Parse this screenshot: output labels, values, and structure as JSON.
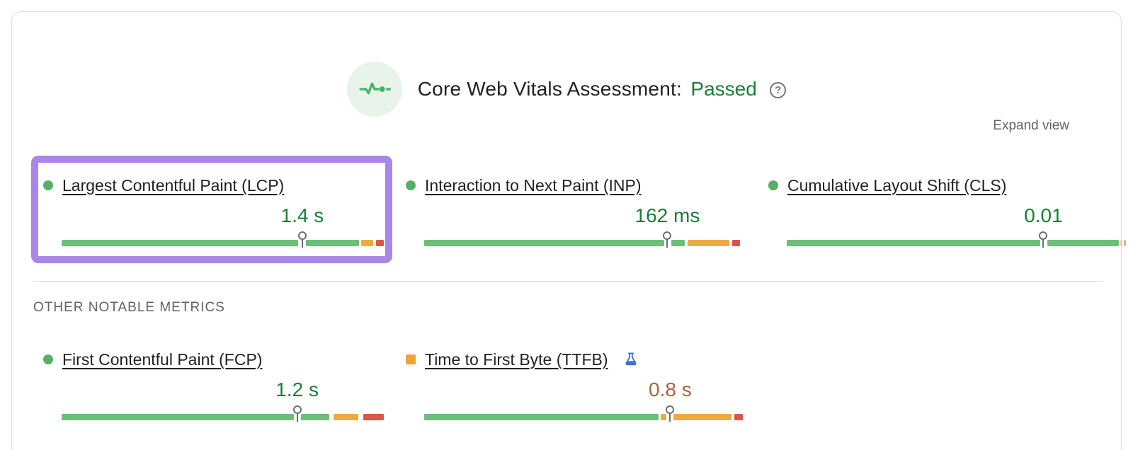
{
  "header": {
    "icon": "pulse-icon",
    "title": "Core Web Vitals Assessment:",
    "status": "Passed",
    "help_glyph": "?"
  },
  "expand_view_label": "Expand view",
  "other_metrics_title": "OTHER NOTABLE METRICS",
  "colors": {
    "good": "#6dbe76",
    "ni": "#edaa40",
    "poor": "#dc544a",
    "passed_text": "#188038",
    "ttfb_value_text": "#a8643a",
    "highlight": "#a886ea",
    "marker": "#6a6f73"
  },
  "vitals": [
    {
      "id": "lcp",
      "label": "Largest Contentful Paint (LCP)",
      "value": "1.4 s",
      "value_color": "#188038",
      "marker_pct": 74.7,
      "highlighted": true,
      "segments": [
        {
          "color": "good",
          "from": 0,
          "to": 73.5
        },
        {
          "color": "good",
          "from": 75.9,
          "to": 92.4
        },
        {
          "color": "ni",
          "from": 93.0,
          "to": 96.8
        },
        {
          "color": "poor",
          "from": 97.6,
          "to": 100
        }
      ]
    },
    {
      "id": "inp",
      "label": "Interaction to Next Paint (INP)",
      "value": "162 ms",
      "value_color": "#188038",
      "marker_pct": 77.0,
      "highlighted": false,
      "segments": [
        {
          "color": "good",
          "from": 0,
          "to": 76.0
        },
        {
          "color": "good",
          "from": 78.2,
          "to": 82.6
        },
        {
          "color": "ni",
          "from": 83.5,
          "to": 96.6
        },
        {
          "color": "poor",
          "from": 97.6,
          "to": 100
        }
      ]
    },
    {
      "id": "cls",
      "label": "Cumulative Layout Shift (CLS)",
      "value": "0.01",
      "value_color": "#188038",
      "marker_pct": 75.2,
      "highlighted": false,
      "segments": [
        {
          "color": "good",
          "from": 0,
          "to": 74.3
        },
        {
          "color": "good",
          "from": 76.3,
          "to": 97.2
        },
        {
          "color": "ni",
          "from": 97.7,
          "to": 98.3,
          "faded": true
        },
        {
          "color": "poor",
          "from": 98.8,
          "to": 99.4,
          "faded": true
        }
      ]
    }
  ],
  "other_metrics": [
    {
      "id": "fcp",
      "label": "First Contentful Paint (FCP)",
      "value": "1.2 s",
      "value_color": "#188038",
      "marker_pct": 73.1,
      "segments": [
        {
          "color": "good",
          "from": 0,
          "to": 72.0
        },
        {
          "color": "good",
          "from": 74.2,
          "to": 83.0
        },
        {
          "color": "ni",
          "from": 84.3,
          "to": 92.0
        },
        {
          "color": "poor",
          "from": 93.7,
          "to": 100
        }
      ]
    },
    {
      "id": "ttfb",
      "label": "Time to First Byte (TTFB)",
      "value": "0.8 s",
      "value_color": "#a8643a",
      "marker_pct": 77.2,
      "experimental": true,
      "segments": [
        {
          "color": "good",
          "from": 0,
          "to": 73.5
        },
        {
          "color": "ni",
          "from": 74.2,
          "to": 76.1
        },
        {
          "color": "ni",
          "from": 78.3,
          "to": 96.5
        },
        {
          "color": "poor",
          "from": 97.4,
          "to": 100
        }
      ]
    }
  ]
}
